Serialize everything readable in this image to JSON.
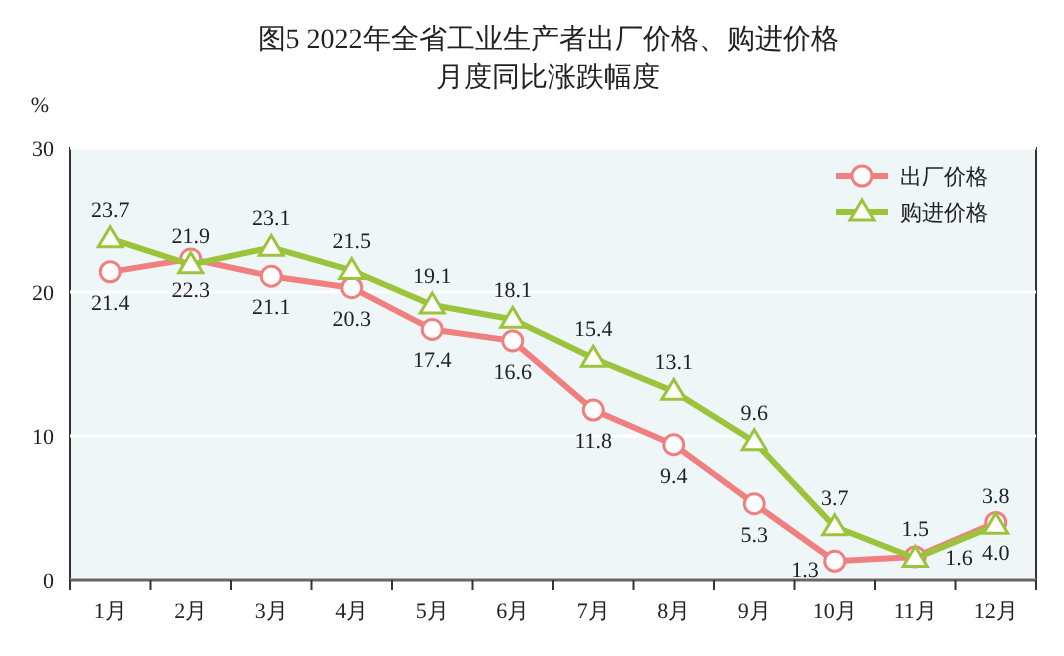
{
  "chart_data": {
    "type": "line",
    "title": "图5  2022年全省工业生产者出厂价格、购进价格",
    "subtitle": "月度同比涨跌幅度",
    "ylabel": "%",
    "categories": [
      "1月",
      "2月",
      "3月",
      "4月",
      "5月",
      "6月",
      "7月",
      "8月",
      "9月",
      "10月",
      "11月",
      "12月"
    ],
    "series": [
      {
        "name": "出厂价格",
        "color": "#f08080",
        "marker": "circle",
        "values": [
          21.4,
          22.3,
          21.1,
          20.3,
          17.4,
          16.6,
          11.8,
          9.4,
          5.3,
          1.3,
          1.6,
          4.0
        ],
        "value_labels": [
          "21.4",
          "22.3",
          "21.1",
          "20.3",
          "17.4",
          "16.6",
          "11.8",
          "9.4",
          "5.3",
          "1.3",
          "1.6",
          "4.0"
        ]
      },
      {
        "name": "购进价格",
        "color": "#9bc43c",
        "marker": "triangle",
        "values": [
          23.7,
          21.9,
          23.1,
          21.5,
          19.1,
          18.1,
          15.4,
          13.1,
          9.6,
          3.7,
          1.5,
          3.8
        ],
        "value_labels": [
          "23.7",
          "21.9",
          "23.1",
          "21.5",
          "19.1",
          "18.1",
          "15.4",
          "13.1",
          "9.6",
          "3.7",
          "1.5",
          "3.8"
        ]
      }
    ],
    "ylim": [
      0,
      30
    ],
    "yticks": [
      0,
      10,
      20,
      30
    ],
    "grid": "y",
    "legend": "top right"
  }
}
